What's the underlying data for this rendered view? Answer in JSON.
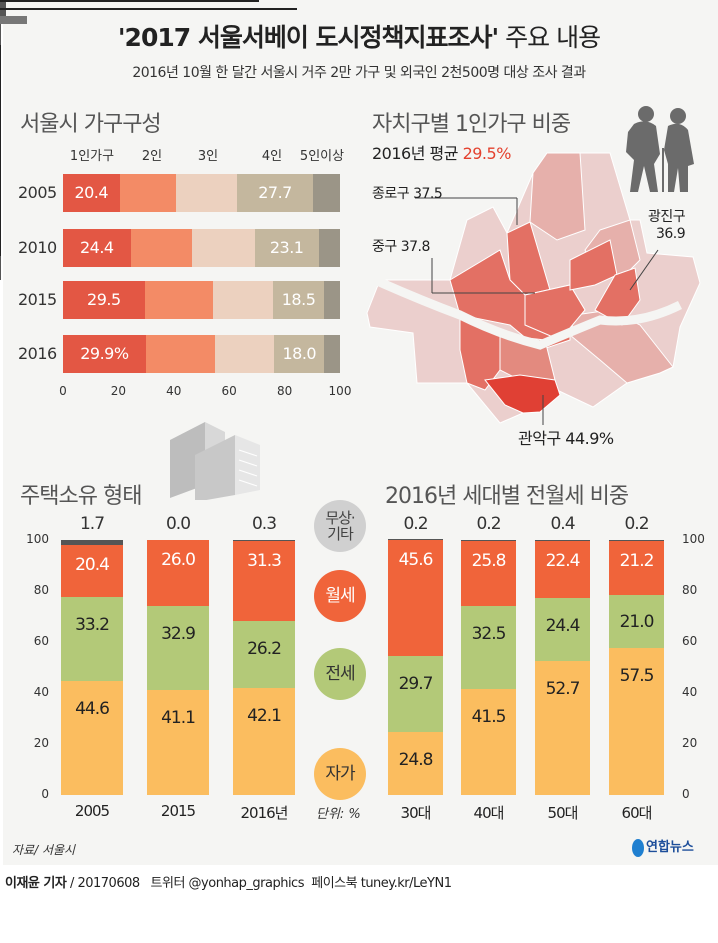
{
  "header": {
    "title_main": "'2017 서울서베이 도시정책지표조사'",
    "title_suffix": " 주요 내용",
    "subtitle": "2016년 10월 한 달간 서울시 거주 2만 가구 및 외국인 2천500명 대상 조사 결과"
  },
  "colors": {
    "one": "#e35744",
    "two": "#f38b66",
    "three": "#ecd1bf",
    "four": "#c4b79e",
    "five": "#9b9587",
    "own": "#fbbd5f",
    "jeonse": "#b3c978",
    "wolse": "#f0643a",
    "free": "#555555"
  },
  "chart_data": [
    {
      "type": "bar",
      "orientation": "horizontal",
      "stacked": true,
      "title": "서울시 가구구성",
      "categories": [
        "2005",
        "2010",
        "2015",
        "2016"
      ],
      "series": [
        {
          "name": "1인가구",
          "values": [
            20.4,
            24.4,
            29.5,
            29.9
          ],
          "labels": [
            "20.4",
            "24.4",
            "29.5",
            "29.9%"
          ]
        },
        {
          "name": "2인",
          "values": [
            20.3,
            22.2,
            24.5,
            24.8
          ],
          "labels": [
            null,
            null,
            null,
            null
          ]
        },
        {
          "name": "3인",
          "values": [
            22.0,
            22.6,
            21.8,
            21.6
          ],
          "labels": [
            null,
            null,
            null,
            null
          ]
        },
        {
          "name": "4인",
          "values": [
            27.7,
            23.1,
            18.5,
            18.0
          ],
          "labels": [
            "27.7",
            "23.1",
            "18.5",
            "18.0"
          ]
        },
        {
          "name": "5인이상",
          "values": [
            9.6,
            7.7,
            5.7,
            5.7
          ],
          "labels": [
            null,
            null,
            null,
            null
          ]
        }
      ],
      "xlim": [
        0,
        100
      ],
      "xticks": [
        "0",
        "20",
        "40",
        "60",
        "80",
        "100"
      ]
    },
    {
      "type": "map",
      "title": "자치구별 1인가구 비중",
      "subtitle_prefix": "2016년 평균 ",
      "average": "29.5%",
      "annotations": [
        {
          "district": "종로구",
          "value": "37.5"
        },
        {
          "district": "중구",
          "value": "37.8"
        },
        {
          "district": "광진구",
          "value": "36.9"
        },
        {
          "district": "관악구",
          "value": "44.9%"
        }
      ]
    },
    {
      "type": "bar",
      "stacked": true,
      "title": "주택소유 형태",
      "categories": [
        "2005",
        "2015",
        "2016년"
      ],
      "series": [
        {
          "name": "자가",
          "values": [
            44.6,
            41.1,
            42.1
          ]
        },
        {
          "name": "전세",
          "values": [
            33.2,
            32.9,
            26.2
          ]
        },
        {
          "name": "월세",
          "values": [
            20.4,
            26.0,
            31.3
          ]
        },
        {
          "name": "무상·기타",
          "values": [
            1.7,
            0.0,
            0.3
          ]
        }
      ],
      "ylim": [
        0,
        100
      ],
      "yticks": [
        "0",
        "20",
        "40",
        "60",
        "80",
        "100"
      ]
    },
    {
      "type": "bar",
      "stacked": true,
      "title": "2016년 세대별 전월세 비중",
      "categories": [
        "30대",
        "40대",
        "50대",
        "60대"
      ],
      "series": [
        {
          "name": "자가",
          "values": [
            24.8,
            41.5,
            52.7,
            57.5
          ]
        },
        {
          "name": "전세",
          "values": [
            29.7,
            32.5,
            24.4,
            21.0
          ]
        },
        {
          "name": "월세",
          "values": [
            45.6,
            25.8,
            22.4,
            21.2
          ]
        },
        {
          "name": "무상·기타",
          "values": [
            0.2,
            0.2,
            0.4,
            0.2
          ]
        }
      ],
      "ylim": [
        0,
        100
      ],
      "yticks": [
        "0",
        "20",
        "40",
        "60",
        "80",
        "100"
      ]
    }
  ],
  "legend": {
    "free": "무상·\n기타",
    "wolse": "월세",
    "jeonse": "전세",
    "own": "자가"
  },
  "unit": "단위: %",
  "source": "자료/ 서울시",
  "logo": "연합뉴스",
  "footer": {
    "author": "이재윤 기자",
    "rest": " / 20170608   트위터 @yonhap_graphics  페이스북 tuney.kr/LeYN1"
  }
}
